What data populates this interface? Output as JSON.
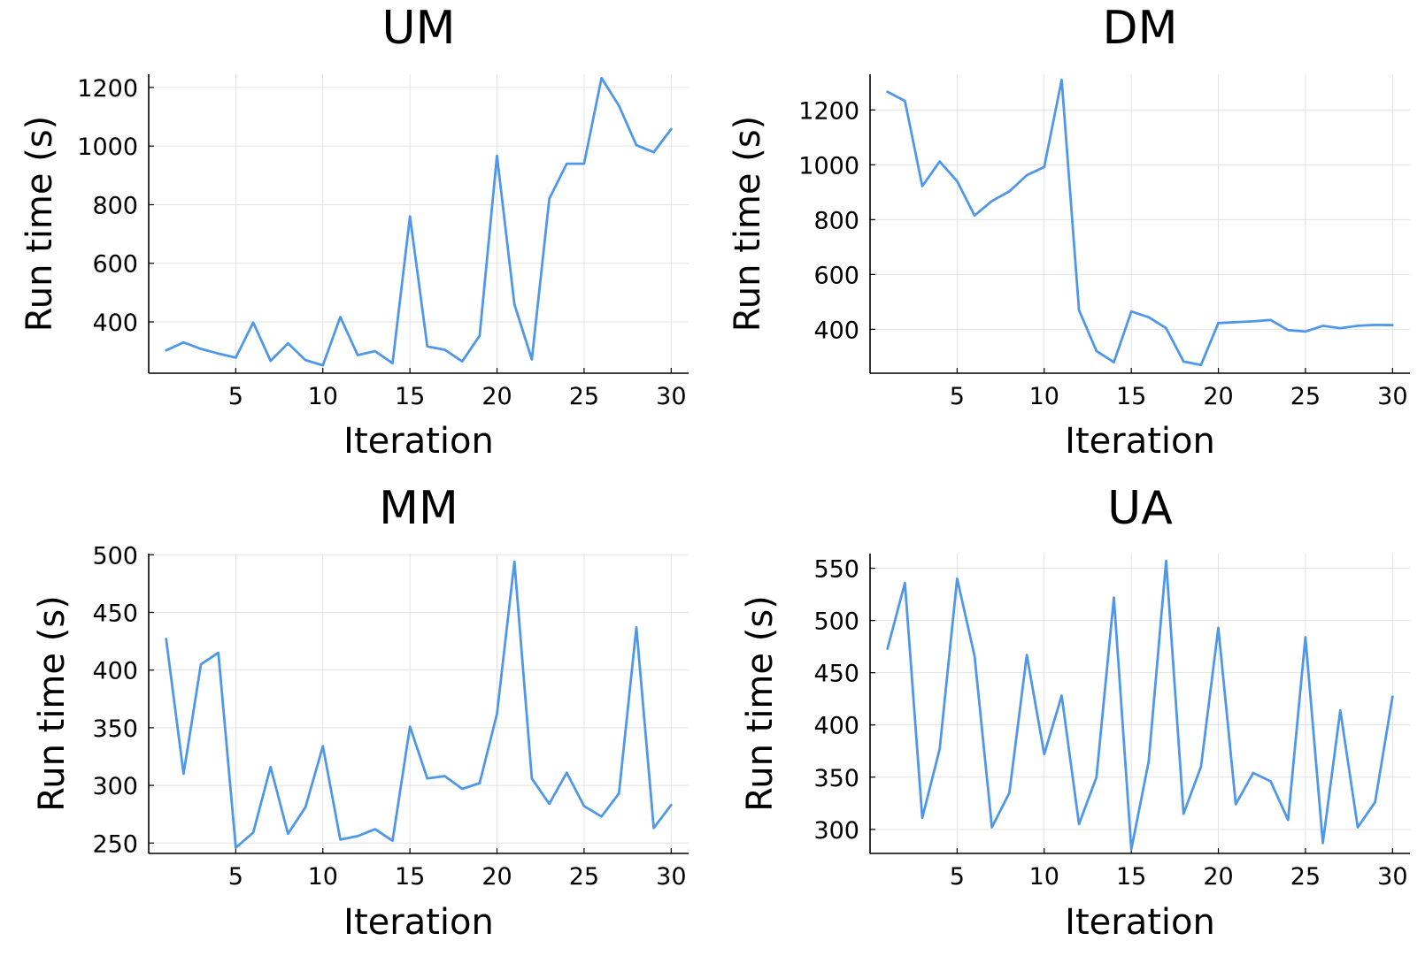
{
  "chart_data": [
    {
      "type": "line",
      "title": "UM",
      "xlabel": "Iteration",
      "ylabel": "Run time (s)",
      "xlim": [
        0,
        31
      ],
      "ylim": [
        225,
        1245
      ],
      "xticks": [
        5,
        10,
        15,
        20,
        25,
        30
      ],
      "yticks": [
        400,
        600,
        800,
        1000,
        1200
      ],
      "grid": true,
      "series": [
        {
          "color": "#4f98e9",
          "x": [
            1,
            2,
            3,
            4,
            5,
            6,
            7,
            8,
            9,
            10,
            11,
            12,
            13,
            14,
            15,
            16,
            17,
            18,
            19,
            20,
            21,
            22,
            23,
            24,
            25,
            26,
            27,
            28,
            29,
            30
          ],
          "y": [
            303,
            330,
            308,
            292,
            278,
            398,
            267,
            327,
            270,
            252,
            417,
            287,
            300,
            259,
            760,
            316,
            305,
            265,
            353,
            967,
            460,
            272,
            820,
            940,
            940,
            1232,
            1138,
            1003,
            979,
            1058
          ]
        }
      ]
    },
    {
      "type": "line",
      "title": "DM",
      "xlabel": "Iteration",
      "ylabel": "Run time (s)",
      "xlim": [
        0,
        31
      ],
      "ylim": [
        240,
        1330
      ],
      "xticks": [
        5,
        10,
        15,
        20,
        25,
        30
      ],
      "yticks": [
        400,
        600,
        800,
        1000,
        1200
      ],
      "grid": true,
      "series": [
        {
          "color": "#4f98e9",
          "x": [
            1,
            2,
            3,
            4,
            5,
            6,
            7,
            8,
            9,
            10,
            11,
            12,
            13,
            14,
            15,
            16,
            17,
            18,
            19,
            20,
            21,
            22,
            23,
            24,
            25,
            26,
            27,
            28,
            29,
            30
          ],
          "y": [
            1266,
            1233,
            922,
            1012,
            940,
            815,
            868,
            903,
            962,
            992,
            1310,
            470,
            321,
            280,
            465,
            444,
            404,
            283,
            270,
            423,
            426,
            429,
            434,
            397,
            392,
            413,
            404,
            413,
            416,
            415
          ]
        }
      ]
    },
    {
      "type": "line",
      "title": "MM",
      "xlabel": "Iteration",
      "ylabel": "Run time (s)",
      "xlim": [
        0,
        31
      ],
      "ylim": [
        241,
        501
      ],
      "xticks": [
        5,
        10,
        15,
        20,
        25,
        30
      ],
      "yticks": [
        250,
        300,
        350,
        400,
        450,
        500
      ],
      "grid": true,
      "series": [
        {
          "color": "#4f98e9",
          "x": [
            1,
            2,
            3,
            4,
            5,
            6,
            7,
            8,
            9,
            10,
            11,
            12,
            13,
            14,
            15,
            16,
            17,
            18,
            19,
            20,
            21,
            22,
            23,
            24,
            25,
            26,
            27,
            28,
            29,
            30
          ],
          "y": [
            427,
            310,
            405,
            415,
            246,
            259,
            316,
            258,
            281,
            334,
            253,
            256,
            262,
            252,
            351,
            306,
            308,
            297,
            302,
            362,
            494,
            306,
            284,
            311,
            282,
            273,
            293,
            437,
            263,
            283
          ]
        }
      ]
    },
    {
      "type": "line",
      "title": "UA",
      "xlabel": "Iteration",
      "ylabel": "Run time (s)",
      "xlim": [
        0,
        31
      ],
      "ylim": [
        277,
        564
      ],
      "xticks": [
        5,
        10,
        15,
        20,
        25,
        30
      ],
      "yticks": [
        300,
        350,
        400,
        450,
        500,
        550
      ],
      "grid": true,
      "series": [
        {
          "color": "#4f98e9",
          "x": [
            1,
            2,
            3,
            4,
            5,
            6,
            7,
            8,
            9,
            10,
            11,
            12,
            13,
            14,
            15,
            16,
            17,
            18,
            19,
            20,
            21,
            22,
            23,
            24,
            25,
            26,
            27,
            28,
            29,
            30
          ],
          "y": [
            473,
            536,
            311,
            377,
            540,
            466,
            302,
            335,
            467,
            372,
            428,
            305,
            350,
            522,
            281,
            365,
            557,
            315,
            360,
            493,
            324,
            354,
            346,
            309,
            484,
            287,
            414,
            302,
            326,
            427
          ]
        }
      ]
    }
  ]
}
